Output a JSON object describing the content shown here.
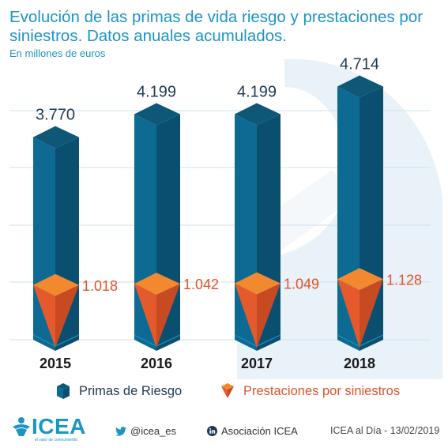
{
  "title_lines": [
    "Evolución de las primas de vida riesgo y prestaciones por",
    "siniestros. Datos anuales acumulados."
  ],
  "subtitle": "En millones de euros",
  "chart_data": {
    "type": "bar",
    "categories": [
      "2015",
      "2016",
      "2017",
      "2018"
    ],
    "series": [
      {
        "name": "Primas de Riesgo",
        "values": [
          3770,
          4199,
          4199,
          4714
        ],
        "labels": [
          "3.770",
          "4.199",
          "4.199",
          "4.714"
        ],
        "color": "#0f5a82"
      },
      {
        "name": "Prestaciones por siniestros",
        "values": [
          1018,
          1042,
          1049,
          1128
        ],
        "labels": [
          "1.018",
          "1.042",
          "1.049",
          "1.128"
        ],
        "color": "#f2892f"
      }
    ],
    "ylim": [
      0,
      5000
    ],
    "grid": true,
    "legend": "bottom"
  },
  "legend": {
    "primas": "Primas de Riesgo",
    "prestaciones": "Prestaciones por siniestros"
  },
  "footer": {
    "logo": "ICEA",
    "logo_tagline": "el valor de conocimiento",
    "twitter": "@icea_es",
    "linkedin": "Asociación ICEA",
    "credit": "ICEA al Día - 13/02/2019"
  },
  "colors": {
    "accent": "#1c95c4",
    "bar_front": "#0d6a93",
    "bar_side": "#0a4f70",
    "bar_top": "#0e5777",
    "cone": "#e55a2c",
    "cone_top": "#f2892f",
    "value_label": "#1e3a52",
    "claims_label": "#e0522a"
  },
  "icons": {
    "legend_primas": "cube-icon",
    "legend_prestaciones": "cone-icon",
    "twitter": "twitter-bird-icon",
    "linkedin": "linkedin-icon",
    "logo": "icea-person-icon"
  }
}
